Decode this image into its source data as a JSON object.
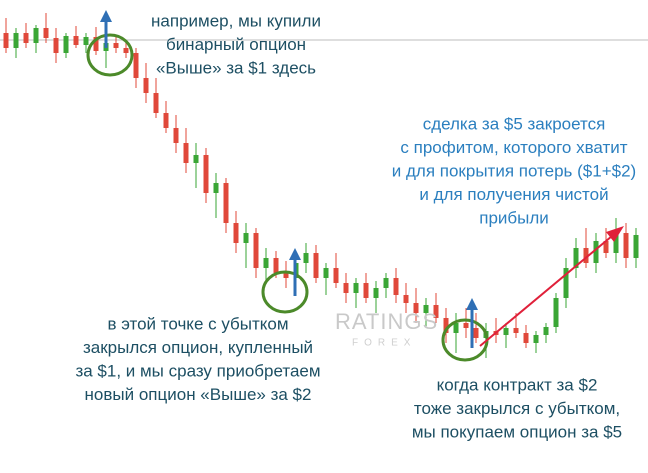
{
  "chart_data": {
    "type": "candlestick",
    "up_color": "#3aa635",
    "down_color": "#e0483a",
    "ylim": [
      0,
      473
    ],
    "candles": [
      {
        "open": 440,
        "high": 455,
        "low": 420,
        "close": 425
      },
      {
        "open": 425,
        "high": 445,
        "low": 415,
        "close": 440
      },
      {
        "open": 440,
        "high": 450,
        "low": 425,
        "close": 430
      },
      {
        "open": 430,
        "high": 448,
        "low": 420,
        "close": 445
      },
      {
        "open": 445,
        "high": 460,
        "low": 430,
        "close": 435
      },
      {
        "open": 435,
        "high": 445,
        "low": 410,
        "close": 420
      },
      {
        "open": 420,
        "high": 440,
        "low": 415,
        "close": 437
      },
      {
        "open": 437,
        "high": 447,
        "low": 425,
        "close": 428
      },
      {
        "open": 428,
        "high": 440,
        "low": 420,
        "close": 436
      },
      {
        "open": 436,
        "high": 446,
        "low": 418,
        "close": 422
      },
      {
        "open": 422,
        "high": 434,
        "low": 405,
        "close": 430
      },
      {
        "open": 430,
        "high": 438,
        "low": 420,
        "close": 425
      },
      {
        "open": 425,
        "high": 432,
        "low": 415,
        "close": 420
      },
      {
        "open": 420,
        "high": 425,
        "low": 385,
        "close": 395
      },
      {
        "open": 395,
        "high": 410,
        "low": 370,
        "close": 380
      },
      {
        "open": 380,
        "high": 395,
        "low": 355,
        "close": 360
      },
      {
        "open": 360,
        "high": 372,
        "low": 340,
        "close": 345
      },
      {
        "open": 345,
        "high": 358,
        "low": 320,
        "close": 330
      },
      {
        "open": 330,
        "high": 345,
        "low": 300,
        "close": 310
      },
      {
        "open": 310,
        "high": 330,
        "low": 285,
        "close": 318
      },
      {
        "open": 318,
        "high": 325,
        "low": 270,
        "close": 280
      },
      {
        "open": 280,
        "high": 300,
        "low": 255,
        "close": 290
      },
      {
        "open": 290,
        "high": 295,
        "low": 240,
        "close": 250
      },
      {
        "open": 250,
        "high": 262,
        "low": 220,
        "close": 230
      },
      {
        "open": 230,
        "high": 250,
        "low": 205,
        "close": 240
      },
      {
        "open": 240,
        "high": 245,
        "low": 195,
        "close": 205
      },
      {
        "open": 205,
        "high": 225,
        "low": 190,
        "close": 215
      },
      {
        "open": 215,
        "high": 222,
        "low": 195,
        "close": 200
      },
      {
        "open": 200,
        "high": 212,
        "low": 185,
        "close": 195
      },
      {
        "open": 195,
        "high": 215,
        "low": 180,
        "close": 210
      },
      {
        "open": 210,
        "high": 230,
        "low": 200,
        "close": 220
      },
      {
        "open": 220,
        "high": 228,
        "low": 190,
        "close": 195
      },
      {
        "open": 195,
        "high": 210,
        "low": 178,
        "close": 205
      },
      {
        "open": 205,
        "high": 220,
        "low": 185,
        "close": 190
      },
      {
        "open": 190,
        "high": 200,
        "low": 170,
        "close": 180
      },
      {
        "open": 180,
        "high": 195,
        "low": 165,
        "close": 190
      },
      {
        "open": 190,
        "high": 200,
        "low": 170,
        "close": 175
      },
      {
        "open": 175,
        "high": 192,
        "low": 160,
        "close": 185
      },
      {
        "open": 185,
        "high": 200,
        "low": 175,
        "close": 195
      },
      {
        "open": 195,
        "high": 205,
        "low": 170,
        "close": 178
      },
      {
        "open": 178,
        "high": 190,
        "low": 160,
        "close": 170
      },
      {
        "open": 170,
        "high": 185,
        "low": 150,
        "close": 160
      },
      {
        "open": 160,
        "high": 175,
        "low": 145,
        "close": 168
      },
      {
        "open": 168,
        "high": 180,
        "low": 150,
        "close": 155
      },
      {
        "open": 155,
        "high": 165,
        "low": 130,
        "close": 140
      },
      {
        "open": 140,
        "high": 160,
        "low": 120,
        "close": 150
      },
      {
        "open": 150,
        "high": 165,
        "low": 135,
        "close": 145
      },
      {
        "open": 145,
        "high": 160,
        "low": 130,
        "close": 135
      },
      {
        "open": 135,
        "high": 150,
        "low": 115,
        "close": 142
      },
      {
        "open": 142,
        "high": 155,
        "low": 130,
        "close": 138
      },
      {
        "open": 138,
        "high": 150,
        "low": 125,
        "close": 145
      },
      {
        "open": 145,
        "high": 160,
        "low": 135,
        "close": 140
      },
      {
        "open": 140,
        "high": 148,
        "low": 125,
        "close": 130
      },
      {
        "open": 130,
        "high": 142,
        "low": 120,
        "close": 138
      },
      {
        "open": 138,
        "high": 150,
        "low": 130,
        "close": 146
      },
      {
        "open": 146,
        "high": 180,
        "low": 140,
        "close": 175
      },
      {
        "open": 175,
        "high": 215,
        "low": 165,
        "close": 205
      },
      {
        "open": 205,
        "high": 235,
        "low": 195,
        "close": 225
      },
      {
        "open": 225,
        "high": 245,
        "low": 205,
        "close": 210
      },
      {
        "open": 210,
        "high": 240,
        "low": 200,
        "close": 232
      },
      {
        "open": 232,
        "high": 245,
        "low": 215,
        "close": 220
      },
      {
        "open": 220,
        "high": 255,
        "low": 210,
        "close": 240
      },
      {
        "open": 240,
        "high": 250,
        "low": 205,
        "close": 215
      },
      {
        "open": 215,
        "high": 245,
        "low": 205,
        "close": 238
      }
    ],
    "watermark": {
      "main": "RATINGS",
      "sub": "FOREX"
    },
    "annotations": [
      {
        "lines": [
          "например, мы купили",
          "бинарный опцион",
          "«Выше» за $1 здесь"
        ]
      },
      {
        "lines": [
          "сделка за $5 закроется",
          "с профитом, которого хватит",
          "и для покрытия потерь ($1+$2)",
          "и для получения чистой",
          "прибыли"
        ]
      },
      {
        "lines": [
          "в этой точке с убытком",
          "закрылся опцион, купленный",
          "за $1, и мы сразу приобретаем",
          "новый опцион «Выше» за $2"
        ]
      },
      {
        "lines": [
          "когда контракт за $2",
          "тоже закрылся с убытком,",
          "мы покупаем опцион за $5"
        ]
      }
    ]
  }
}
